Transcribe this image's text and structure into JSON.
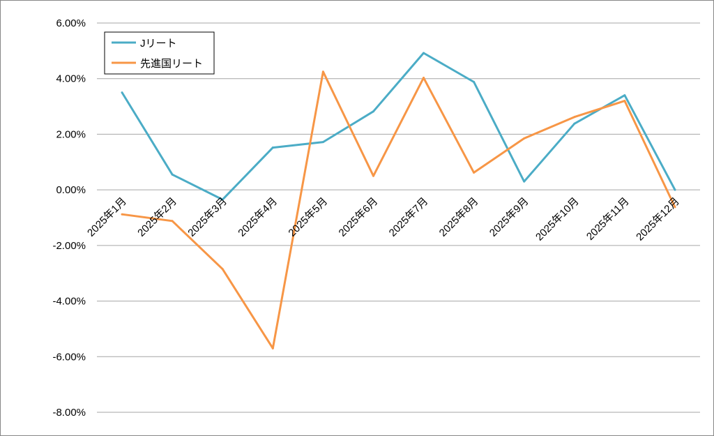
{
  "chart_data": {
    "type": "line",
    "title": "",
    "xlabel": "",
    "ylabel": "",
    "categories": [
      "2025年1月",
      "2025年2月",
      "2025年3月",
      "2025年4月",
      "2025年5月",
      "2025年6月",
      "2025年7月",
      "2025年8月",
      "2025年9月",
      "2025年10月",
      "2025年11月",
      "2025年12月"
    ],
    "ylim": [
      -8,
      6
    ],
    "yticks": [
      6,
      4,
      2,
      0,
      -2,
      -4,
      -6,
      -8
    ],
    "ytick_labels": [
      "6.00%",
      "4.00%",
      "2.00%",
      "0.00%",
      "-2.00%",
      "-4.00%",
      "-6.00%",
      "-8.00%"
    ],
    "grid": true,
    "legend_position": "top-left",
    "series": [
      {
        "name": "Jリート",
        "color": "#4bacc6",
        "values": [
          3.5,
          0.55,
          -0.35,
          1.52,
          1.72,
          2.82,
          4.92,
          3.88,
          0.3,
          2.38,
          3.4,
          0.0
        ]
      },
      {
        "name": "先進国リート",
        "color": "#f79646",
        "values": [
          -0.88,
          -1.12,
          -2.85,
          -5.7,
          4.25,
          0.5,
          4.03,
          0.62,
          1.85,
          2.62,
          3.2,
          -0.62
        ]
      }
    ]
  }
}
